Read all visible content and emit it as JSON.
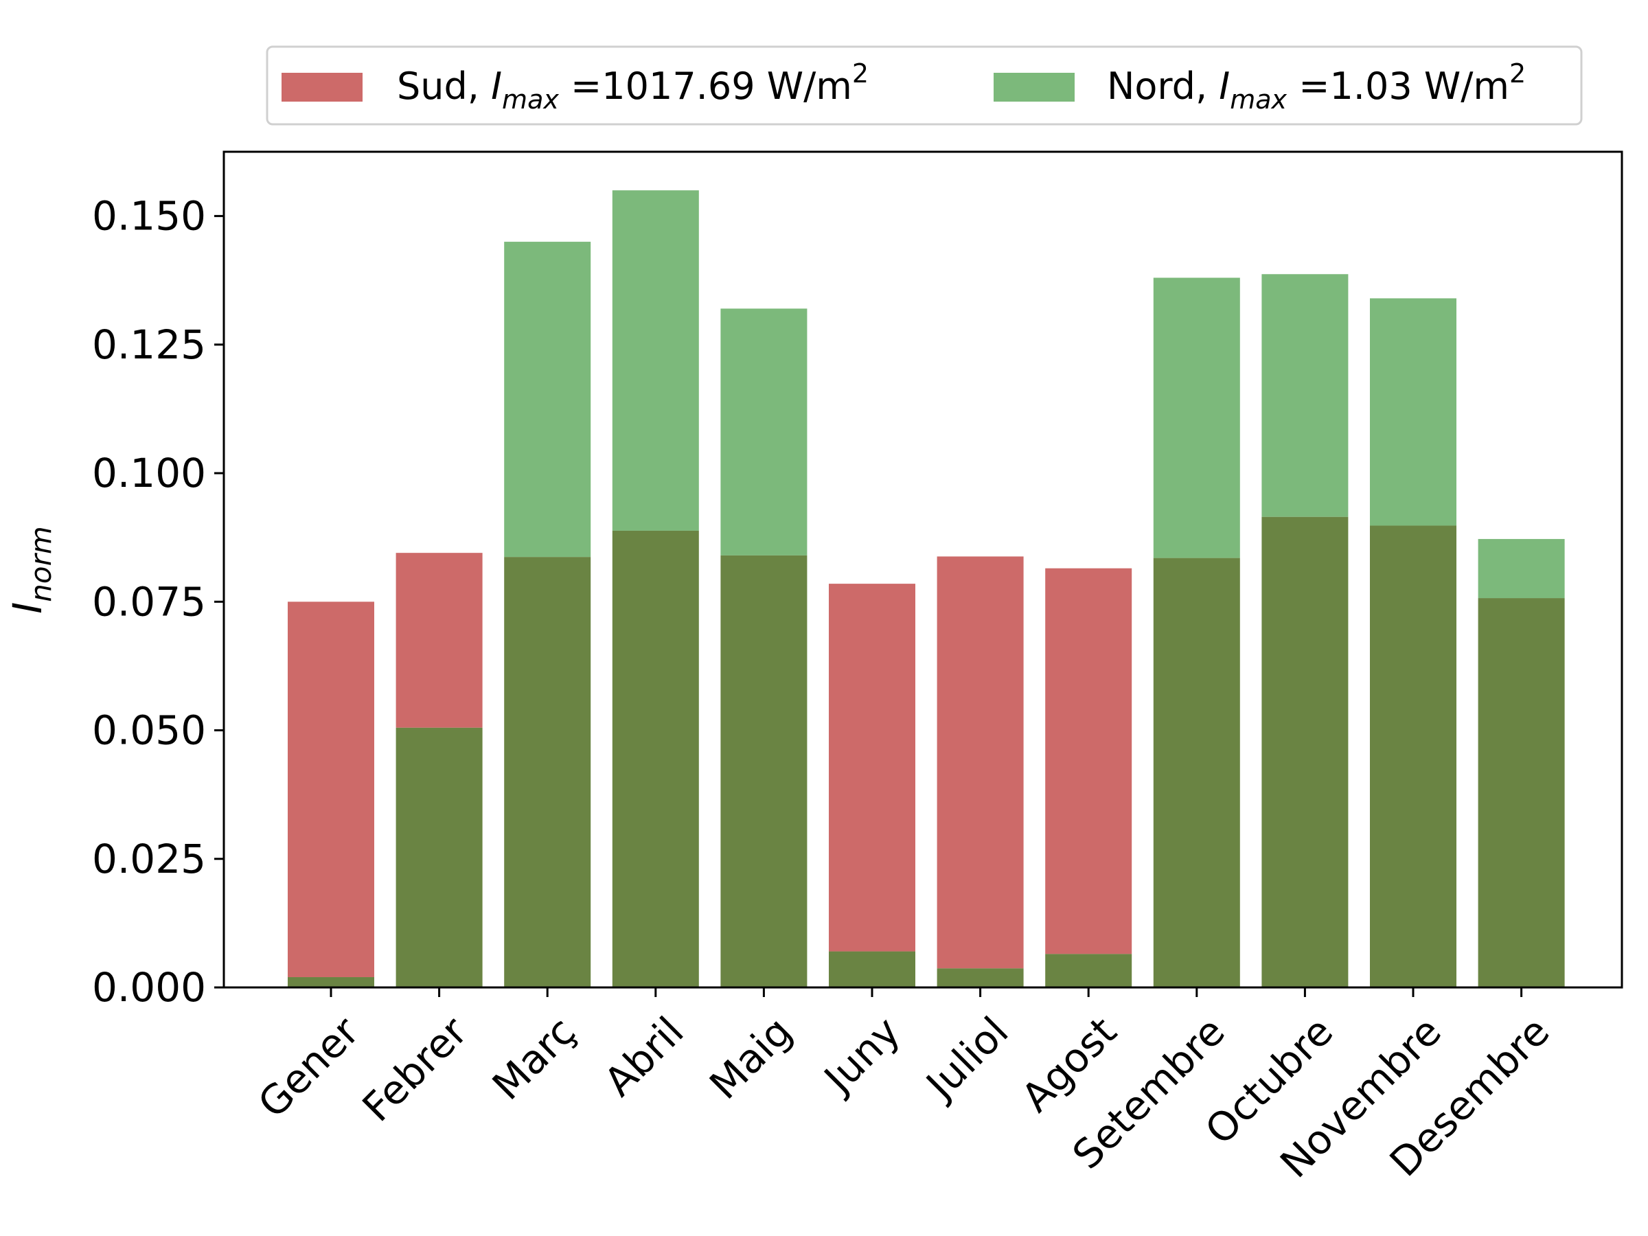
{
  "chart_data": {
    "type": "bar",
    "ylabel": {
      "base": "I",
      "sub": "norm"
    },
    "ylim": [
      0,
      0.1625
    ],
    "yticks": [
      "0.000",
      "0.025",
      "0.050",
      "0.075",
      "0.100",
      "0.125",
      "0.150"
    ],
    "ytick_values": [
      0,
      0.025,
      0.05,
      0.075,
      0.1,
      0.125,
      0.15
    ],
    "categories": [
      "Gener",
      "Febrer",
      "Març",
      "Abril",
      "Maig",
      "Juny",
      "Juliol",
      "Agost",
      "Setembre",
      "Octubre",
      "Novembre",
      "Desembre"
    ],
    "legend_position": "top",
    "grid": false,
    "overlap_color": "#6a8443",
    "series": [
      {
        "name": "Sud",
        "legend": {
          "prefix": "Sud, ",
          "var": "I",
          "sub": "max",
          "value": " =1017.69 W/m",
          "sup": "2"
        },
        "color": "#cd6a69",
        "values": [
          0.075,
          0.0845,
          0.0837,
          0.0888,
          0.084,
          0.0785,
          0.0838,
          0.0815,
          0.0835,
          0.0915,
          0.0898,
          0.0757
        ]
      },
      {
        "name": "Nord",
        "legend": {
          "prefix": "Nord, ",
          "var": "I",
          "sub": "max",
          "value": " =1.03 W/m",
          "sup": "2"
        },
        "color": "#7cb97b",
        "values": [
          0.002,
          0.0505,
          0.145,
          0.155,
          0.132,
          0.007,
          0.0037,
          0.0065,
          0.138,
          0.1387,
          0.134,
          0.0872
        ]
      }
    ]
  }
}
